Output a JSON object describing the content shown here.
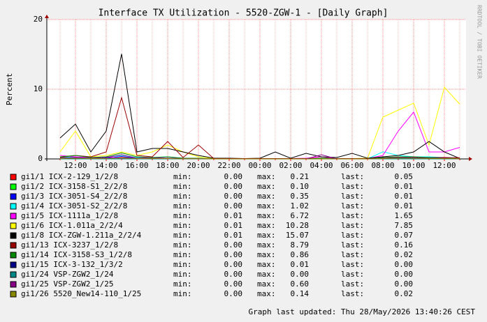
{
  "chart_data": {
    "type": "line",
    "title": "Interface TX Utilization - 5520-ZGW-1 - [Daily Graph]",
    "y_label": "Percent",
    "side_text": "RRDTOOL / TOBI OETIKER",
    "footer": "Graph last updated: Thu 28/May/2026 13:40:26 CEST",
    "categories": [
      null,
      "12:00",
      null,
      "14:00",
      null,
      "16:00",
      null,
      "18:00",
      null,
      "20:00",
      null,
      "22:00",
      null,
      "00:00",
      null,
      "02:00",
      null,
      "04:00",
      null,
      "06:00",
      null,
      "08:00",
      null,
      "10:00",
      null,
      "12:00",
      null
    ],
    "ylim": [
      0,
      20
    ],
    "yticks": [
      0,
      10,
      20
    ],
    "grid": true,
    "stat_labels": [
      "min:",
      "max:",
      "last:"
    ],
    "series": [
      {
        "name": "gi1/1 ICX-2-129_1/2/8",
        "color": "#ff0000",
        "min": "0.00",
        "max": "0.21",
        "last": "0.05",
        "values": [
          0.1,
          0.1,
          0.05,
          0.1,
          0.2,
          0.1,
          0.05,
          0.1,
          0.05,
          0.05,
          0,
          0,
          0,
          0,
          0,
          0,
          0,
          0,
          0,
          0,
          0,
          0.05,
          0.1,
          0.1,
          0.1,
          0.21,
          0.05
        ]
      },
      {
        "name": "gi1/2 ICX-3158-S1_2/2/8",
        "color": "#00ff00",
        "min": "0.00",
        "max": "0.10",
        "last": "0.01",
        "values": [
          0.05,
          0.05,
          0.02,
          0.1,
          0.05,
          0.02,
          0.02,
          0.05,
          0.02,
          0,
          0,
          0,
          0,
          0,
          0,
          0,
          0,
          0,
          0,
          0,
          0,
          0.02,
          0.05,
          0.05,
          0.05,
          0.02,
          0.01
        ]
      },
      {
        "name": "gi1/3 ICX-3051-S4_2/2/8",
        "color": "#0000ff",
        "min": "0.00",
        "max": "0.35",
        "last": "0.01",
        "values": [
          0.1,
          0.2,
          0.1,
          0.1,
          0.35,
          0.1,
          0.1,
          0.1,
          0.05,
          0.05,
          0,
          0,
          0,
          0,
          0,
          0,
          0,
          0.1,
          0,
          0,
          0,
          0.1,
          0.2,
          0.2,
          0.1,
          0.1,
          0.01
        ]
      },
      {
        "name": "gi1/4 ICX-3051-S2_2/2/8",
        "color": "#00ffff",
        "min": "0.00",
        "max": "1.02",
        "last": "0.01",
        "values": [
          0.2,
          0.3,
          0.1,
          0.2,
          0.5,
          0.2,
          0.2,
          0.3,
          0.1,
          0.1,
          0,
          0,
          0,
          0,
          0,
          0,
          0,
          0.1,
          0,
          0,
          0,
          1.02,
          0.5,
          0.3,
          0.3,
          0.2,
          0.01
        ]
      },
      {
        "name": "gi1/5 ICX-1111a_1/2/8",
        "color": "#ff00ff",
        "min": "0.01",
        "max": "6.72",
        "last": "1.65",
        "values": [
          0.5,
          0.3,
          0.2,
          0.3,
          0.1,
          0.1,
          0.2,
          0.1,
          0.05,
          0.05,
          0.02,
          0.02,
          0.02,
          0.02,
          0.02,
          0.05,
          0.1,
          0.3,
          0.05,
          0.05,
          0.05,
          0.5,
          4,
          6.72,
          1,
          1,
          1.65
        ]
      },
      {
        "name": "gi1/6 ICX-1.011a_2/2/4",
        "color": "#ffff00",
        "min": "0.01",
        "max": "10.28",
        "last": "7.85",
        "values": [
          1,
          4,
          0.3,
          0.5,
          1,
          0.5,
          1,
          2,
          1,
          0.3,
          0.05,
          0.05,
          0.05,
          0.05,
          0.05,
          0.05,
          0.05,
          0.1,
          0.05,
          0.05,
          0.1,
          6,
          7,
          8,
          2,
          10.28,
          7.85
        ]
      },
      {
        "name": "gi1/8 ICX-ZGW-1.211a_2/2/4",
        "color": "#000000",
        "min": "0.01",
        "max": "15.07",
        "last": "0.07",
        "values": [
          3,
          5,
          1,
          4,
          15.07,
          1,
          1.5,
          1.5,
          1,
          0.5,
          0.1,
          0.1,
          0.05,
          0.1,
          1,
          0.1,
          0.8,
          0.3,
          0.2,
          0.8,
          0.1,
          0.3,
          0.5,
          1,
          2.5,
          1,
          0.07
        ]
      },
      {
        "name": "gi1/13 ICX-3237_1/2/8",
        "color": "#990000",
        "min": "0.00",
        "max": "8.79",
        "last": "0.16",
        "values": [
          0.2,
          0.5,
          0.3,
          1,
          8.79,
          0.5,
          0.3,
          2.5,
          0.2,
          2,
          0.05,
          0.05,
          0.05,
          0.05,
          0.05,
          0.05,
          0.05,
          0.1,
          0.05,
          0.05,
          0.05,
          0.1,
          0.2,
          0.2,
          0.2,
          0.2,
          0.16
        ]
      },
      {
        "name": "gi1/14 ICX-3158-S3_1/2/8",
        "color": "#008800",
        "min": "0.00",
        "max": "0.86",
        "last": "0.02",
        "values": [
          0.3,
          0.5,
          0.2,
          0.3,
          0.86,
          0.3,
          0.2,
          0.3,
          0.1,
          0.1,
          0,
          0,
          0,
          0,
          0,
          0,
          0,
          0.1,
          0,
          0,
          0,
          0.2,
          0.3,
          0.3,
          0.2,
          0.1,
          0.02
        ]
      },
      {
        "name": "gi1/15 ICX-3-132_1/3/2",
        "color": "#000088",
        "min": "0.00",
        "max": "0.01",
        "last": "0.00",
        "values": [
          0.01,
          0,
          0,
          0.01,
          0,
          0,
          0,
          0,
          0,
          0,
          0,
          0,
          0,
          0,
          0,
          0,
          0,
          0,
          0,
          0,
          0,
          0,
          0.01,
          0,
          0,
          0,
          0
        ]
      },
      {
        "name": "gi1/24 VSP-ZGW2_1/24",
        "color": "#008888",
        "min": "0.00",
        "max": "0.00",
        "last": "0.00",
        "values": [
          0,
          0,
          0,
          0,
          0,
          0,
          0,
          0,
          0,
          0,
          0,
          0,
          0,
          0,
          0,
          0,
          0,
          0,
          0,
          0,
          0,
          0,
          0,
          0,
          0,
          0,
          0
        ]
      },
      {
        "name": "gi1/25 VSP-ZGW2_1/25",
        "color": "#880088",
        "min": "0.00",
        "max": "0.60",
        "last": "0.00",
        "values": [
          0.1,
          0.2,
          0.1,
          0.2,
          0.6,
          0.1,
          0.1,
          0.1,
          0.05,
          0.05,
          0,
          0,
          0,
          0,
          0,
          0,
          0,
          0.6,
          0,
          0,
          0,
          0.1,
          0.2,
          0.2,
          0.1,
          0.1,
          0
        ]
      },
      {
        "name": "gi1/26 5520_New14-110_1/25",
        "color": "#888800",
        "min": "0.00",
        "max": "0.14",
        "last": "0.02",
        "values": [
          0.05,
          0.1,
          0.05,
          0.05,
          0.14,
          0.05,
          0.05,
          0.05,
          0.02,
          0.02,
          0,
          0,
          0,
          0,
          0,
          0,
          0,
          0,
          0,
          0,
          0,
          0.05,
          0.1,
          0.1,
          0.05,
          0.05,
          0.02
        ]
      }
    ]
  }
}
